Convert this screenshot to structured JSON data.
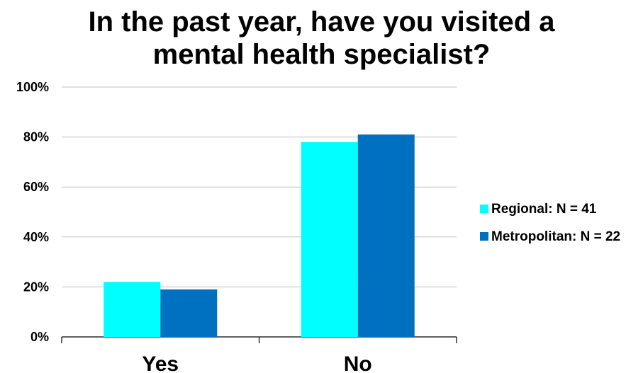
{
  "chart_data": {
    "type": "bar",
    "title": [
      "In the past year, have you visited a",
      "mental health specialist?"
    ],
    "categories": [
      "Yes",
      "No"
    ],
    "series": [
      {
        "name": "Regional: N = 41",
        "color": "#00FFFF",
        "values": [
          22,
          78
        ]
      },
      {
        "name": "Metropolitan: N = 22",
        "color": "#0070C0",
        "values": [
          19,
          81
        ]
      }
    ],
    "ylim": [
      0,
      100
    ],
    "yticks": [
      0,
      20,
      40,
      60,
      80,
      100
    ],
    "ytick_labels": [
      "0%",
      "20%",
      "40%",
      "60%",
      "80%",
      "100%"
    ],
    "xlabel": "",
    "ylabel": "",
    "grid": true,
    "legend_position": "right"
  }
}
